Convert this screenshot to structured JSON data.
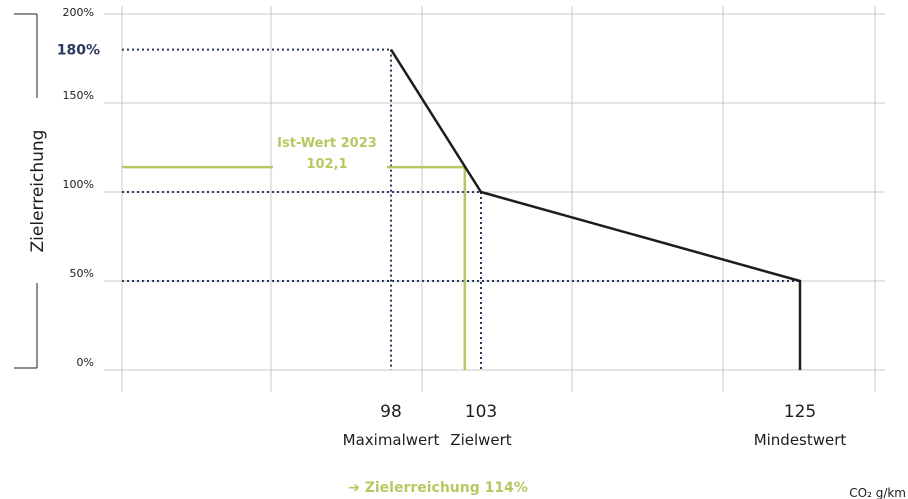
{
  "chart_data": {
    "type": "line",
    "ylabel": "Zielerreichung",
    "yticks": [
      "0%",
      "50%",
      "100%",
      "150%",
      "200%"
    ],
    "ylim": [
      0,
      200
    ],
    "x_unit": "CO₂ g/km",
    "grid": true,
    "series": [
      {
        "name": "",
        "color": "#1d1d1b",
        "points": [
          {
            "x": 98,
            "y": 180
          },
          {
            "x": 103,
            "y": 100
          },
          {
            "x": 125,
            "y": 50
          }
        ]
      }
    ],
    "reference_points": [
      {
        "value_label": "98",
        "name": "Maximalwert",
        "x": 98,
        "y": 180,
        "y_label": "180%"
      },
      {
        "value_label": "103",
        "name": "Zielwert",
        "x": 103,
        "y": 100
      },
      {
        "value_label": "125",
        "name": "Mindestwert",
        "x": 125,
        "y": 50
      }
    ],
    "actual": {
      "label": "Ist-Wert 2023",
      "value_label": "102,1",
      "x": 102.1,
      "y": 114,
      "color": "#b5c961"
    },
    "result_text": "➔ Zielerreichung 114%",
    "colors": {
      "line": "#1d1d1b",
      "dotted": "#2a3a5e",
      "actual": "#b5c961",
      "grid": "#c8c8c8"
    }
  }
}
